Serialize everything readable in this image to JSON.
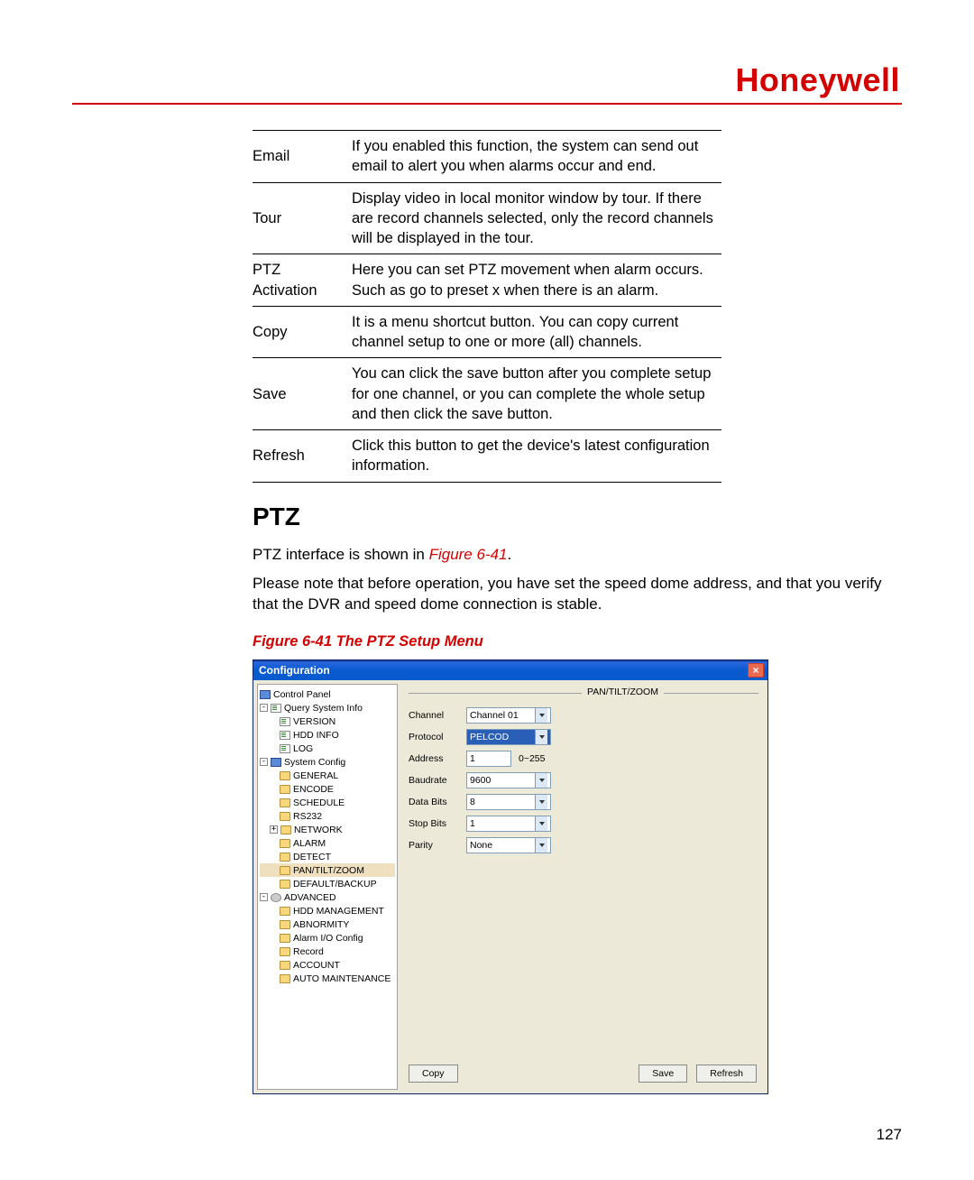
{
  "brand": "Honeywell",
  "table": {
    "rows": [
      {
        "term": "Email",
        "desc": "If you enabled this function, the system can send out email to alert you when alarms occur and end."
      },
      {
        "term": "Tour",
        "desc": "Display video in local monitor window by tour. If there are record channels selected, only the record channels will be displayed in the tour."
      },
      {
        "term": "PTZ Activation",
        "desc": "Here you can set PTZ movement when alarm occurs. Such as go to preset x when there is an alarm."
      },
      {
        "term": "Copy",
        "desc": "It is a menu shortcut button. You can copy current channel setup to one or more (all) channels."
      },
      {
        "term": "Save",
        "desc": "You can click the save button after you complete setup for one channel, or you can complete the whole setup and then click the save button."
      },
      {
        "term": "Refresh",
        "desc": "Click this button to get the device's latest configuration information."
      }
    ]
  },
  "section": {
    "heading": "PTZ",
    "intro_pre": "PTZ interface is shown in ",
    "intro_link": "Figure 6-41",
    "intro_post": ".",
    "note": "Please note that before operation, you have set the speed dome address, and that you verify that the DVR and speed dome connection is stable.",
    "figcaption": "Figure 6-41 The PTZ Setup Menu"
  },
  "win": {
    "title": "Configuration",
    "groupTitle": "PAN/TILT/ZOOM",
    "tree": {
      "root": "Control Panel",
      "query": "Query System Info",
      "version": "VERSION",
      "hdd": "HDD INFO",
      "log": "LOG",
      "syscfg": "System Config",
      "general": "GENERAL",
      "encode": "ENCODE",
      "schedule": "SCHEDULE",
      "rs232": "RS232",
      "network": "NETWORK",
      "alarm": "ALARM",
      "detect": "DETECT",
      "ptz": "PAN/TILT/ZOOM",
      "defbk": "DEFAULT/BACKUP",
      "adv": "ADVANCED",
      "hddm": "HDD MANAGEMENT",
      "abn": "ABNORMITY",
      "aio": "Alarm I/O Config",
      "rec": "Record",
      "acc": "ACCOUNT",
      "auto": "AUTO MAINTENANCE"
    },
    "fields": {
      "channel_l": "Channel",
      "channel_v": "Channel 01",
      "protocol_l": "Protocol",
      "protocol_v": "PELCOD",
      "address_l": "Address",
      "address_v": "1",
      "address_range": "0~255",
      "baud_l": "Baudrate",
      "baud_v": "9600",
      "databits_l": "Data Bits",
      "databits_v": "8",
      "stopbits_l": "Stop Bits",
      "stopbits_v": "1",
      "parity_l": "Parity",
      "parity_v": "None"
    },
    "buttons": {
      "copy": "Copy",
      "save": "Save",
      "refresh": "Refresh"
    }
  },
  "pageNumber": "127",
  "colors": {
    "brand": "#d40000",
    "winTitle": "#0a5acf",
    "panelBg": "#ece9d8"
  }
}
